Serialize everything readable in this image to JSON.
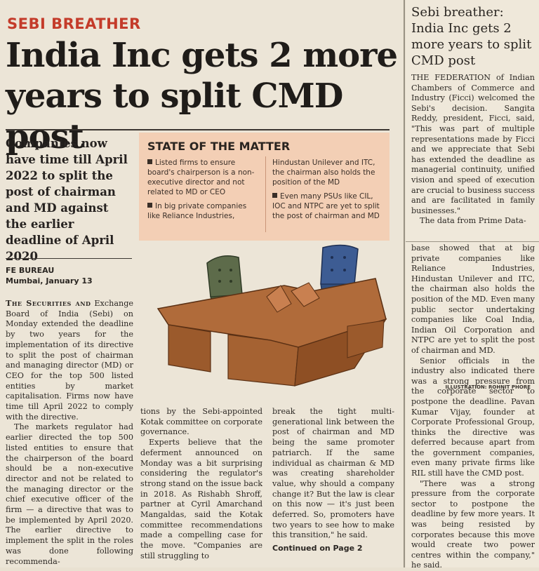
{
  "main": {
    "kicker": "SEBI BREATHER",
    "headline_line1": "India Inc gets 2 more",
    "headline_line2": "years to split CMD post",
    "deck": "Companies now have time till April 2022 to split the post of chairman and MD against the earlier deadline of April 2020",
    "byline_bureau": "FE BUREAU",
    "byline_place": "Mumbai, January 13",
    "col1_lead_caps": "The Securities and",
    "col1_p1": "Exchange Board of India (Sebi) on Monday extended the deadline by two years for the implementation of its directive to split the post of chairman and managing director (MD) or CEO for the top 500 listed entities by market capitalisation. Firms now have time till April 2022 to comply with the directive.",
    "col1_p2": "The markets regulator had earlier directed the top 500 listed entities to ensure that the chairperson of the board should be a non-executive director and not be related to the managing director or the chief executive officer of the firm — a directive that was to be implemented by April 2020. The earlier directive to implement the split in the roles was done following recommenda-",
    "col2_p1": "tions by the Sebi-appointed Kotak committee on corporate governance.",
    "col2_p2": "Experts believe that the deferment announced on Monday was a bit surprising considering the regulator's strong stand on the issue back in 2018. As Rishabh Shroff, partner at Cyril Amarchand Mangaldas, said the Kotak committee recommendations made a compelling case for the move. \"Companies are still struggling to",
    "col3_p1": "break the tight multi-generational link between the post of chairman and MD being the same promoter patriarch. If the same individual as chairman & MD was creating shareholder value, why should a company change it? But the law is clear on this now — it's just been deferred. So, promoters have two years to see how to make this transition,\" he said.",
    "continued": "Continued on Page 2",
    "illustration_credit": "ILLUSTRATION: ROHNIT PHORE"
  },
  "box": {
    "title": "STATE OF THE MATTER",
    "b1": "Listed firms to ensure board's chairperson is a non-executive director and not related to MD or CEO",
    "b2": "In big private companies like Reliance Industries,",
    "b2_cont": "Hindustan Unilever and ITC, the chairman also holds the position of the MD",
    "b3": "Even many PSUs like CIL, IOC and NTPC are yet to split the post of chairman and MD"
  },
  "side": {
    "title": "Sebi breather: India Inc gets 2 more years to split CMD post",
    "p1": "THE FEDERATION of Indian Chambers of Commerce and Industry (Ficci) welcomed the Sebi's decision. Sangita Reddy, president, Ficci, said, \"This was part of multiple representations made by Ficci and we appreciate that Sebi has extended the deadline as managerial continuity, unified vision and speed of execution are crucial to business success and are facilitated in family businesses.\"",
    "p2a": "The data from Prime Data-",
    "p2b": "base showed that at big private companies like Reliance Industries, Hindustan Unilever and ITC, the chairman also holds the position of the MD. Even many public sector undertaking companies like Coal India, Indian Oil Corporation and NTPC are yet to split the post of chairman and MD.",
    "p3": "Senior officials in the industry also indicated there was a strong pressure from the corporate sector to postpone the deadline. Pavan Kumar Vijay, founder at Corporate Professional Group, thinks the directive was deferred because apart from the government companies, even many private firms like RIL still have the CMD post.",
    "p4": "\"There was a strong pressure from the corporate sector to postpone the deadline by few more years. It was being resisted by corporates because this move would create two power centres within the company,\" he said."
  },
  "colors": {
    "kicker": "#c43b2a",
    "box_bg": "#f3cfb5",
    "paper": "#ece5d7"
  }
}
